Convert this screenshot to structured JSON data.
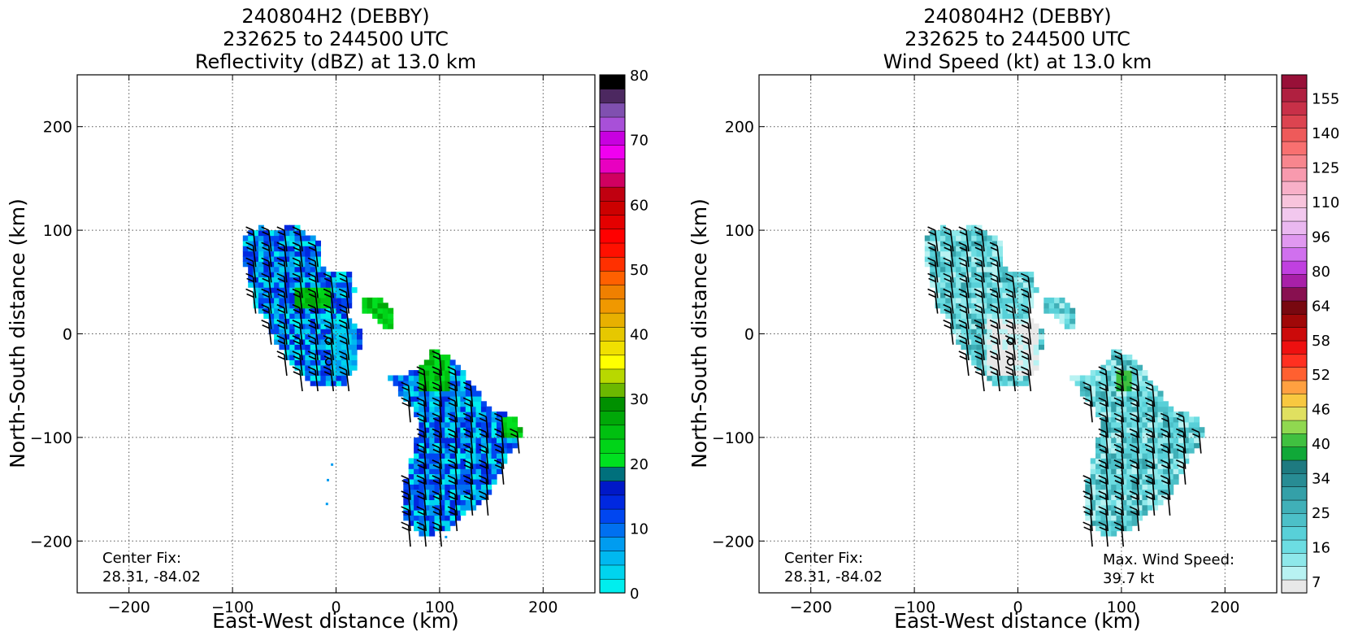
{
  "panels": [
    {
      "title_lines": [
        "240804H2 (DEBBY)",
        "232625 to 244500 UTC",
        "Reflectivity (dBZ) at 13.0 km"
      ],
      "xlabel": "East-West distance (km)",
      "ylabel": "North-South distance (km)",
      "center_fix_label": "Center Fix:",
      "center_fix_value": "28.31, -84.02",
      "colorbar": {
        "tick_labels": [
          "0",
          "10",
          "20",
          "30",
          "40",
          "50",
          "60",
          "70",
          "80"
        ],
        "colors": [
          "#00eeee",
          "#00d4ee",
          "#00b8f0",
          "#009cf0",
          "#0070f0",
          "#0046f0",
          "#0028e0",
          "#0018c8",
          "#00707c",
          "#00e020",
          "#00d418",
          "#00c010",
          "#00a808",
          "#009000",
          "#6cb800",
          "#b8d800",
          "#ffff00",
          "#f0e000",
          "#e6c800",
          "#e8b000",
          "#f09800",
          "#f08000",
          "#ff6000",
          "#ff3000",
          "#ff1000",
          "#ff0000",
          "#e40000",
          "#cc0000",
          "#c00010",
          "#d00060",
          "#e800c0",
          "#f000f0",
          "#c800e0",
          "#a850d8",
          "#8050b0",
          "#4c2860",
          "#000000"
        ]
      },
      "wind_barbs": "black"
    },
    {
      "title_lines": [
        "240804H2 (DEBBY)",
        "232625 to 244500 UTC",
        "Wind Speed (kt) at 13.0 km"
      ],
      "xlabel": "East-West distance (km)",
      "ylabel": "North-South distance (km)",
      "center_fix_label": "Center Fix:",
      "center_fix_value": "28.31, -84.02",
      "max_wind_label": "Max. Wind Speed:",
      "max_wind_value": "39.7 kt",
      "colorbar": {
        "tick_labels": [
          "7",
          "16",
          "25",
          "34",
          "40",
          "46",
          "52",
          "58",
          "64",
          "80",
          "96",
          "110",
          "125",
          "140",
          "155"
        ],
        "colors": [
          "#e8e8e8",
          "#b8f2f2",
          "#8ee8ea",
          "#6cdde2",
          "#58d0d8",
          "#4cc0c8",
          "#40b0b8",
          "#34a0a8",
          "#288c94",
          "#1e7a80",
          "#10a838",
          "#40c040",
          "#90d850",
          "#e0e060",
          "#f8c840",
          "#ffa040",
          "#ff6030",
          "#ff3020",
          "#ee1010",
          "#cc0a0a",
          "#a00808",
          "#780810",
          "#881050",
          "#a820a8",
          "#c040e0",
          "#d070ee",
          "#e098f0",
          "#eab8f0",
          "#f2c8ee",
          "#f8c4dc",
          "#f8b0c8",
          "#f89aae",
          "#f8868e",
          "#f87070",
          "#ee5a5a",
          "#dc4450",
          "#c83048",
          "#b02040",
          "#981038"
        ]
      },
      "wind_barbs": "black"
    }
  ],
  "chart_data": [
    {
      "type": "heatmap",
      "title": "240804H2 (DEBBY) 232625 to 244500 UTC Reflectivity (dBZ) at 13.0 km",
      "xlabel": "East-West distance (km)",
      "ylabel": "North-South distance (km)",
      "xlim": [
        -250,
        250
      ],
      "ylim": [
        -250,
        250
      ],
      "xticks": [
        -200,
        -100,
        0,
        100,
        200
      ],
      "yticks": [
        -200,
        -100,
        0,
        100,
        200
      ],
      "grid": true,
      "colorbar_range": [
        0,
        80
      ],
      "colorbar_units": "dBZ",
      "echo_regions": [
        {
          "x": [
            -90,
            20
          ],
          "y": [
            -55,
            110
          ],
          "dominant_dbz": [
            8,
            14
          ],
          "max_dbz": 28
        },
        {
          "x": [
            25,
            60
          ],
          "y": [
            10,
            35
          ],
          "dominant_dbz": [
            20,
            28
          ]
        },
        {
          "x": [
            45,
            180
          ],
          "y": [
            -200,
            -15
          ],
          "dominant_dbz": [
            6,
            14
          ],
          "max_dbz": 28
        }
      ],
      "center_fix": [
        28.31,
        -84.02
      ]
    },
    {
      "type": "heatmap",
      "title": "240804H2 (DEBBY) 232625 to 244500 UTC Wind Speed (kt) at 13.0 km",
      "xlabel": "East-West distance (km)",
      "ylabel": "North-South distance (km)",
      "xlim": [
        -250,
        250
      ],
      "ylim": [
        -250,
        250
      ],
      "xticks": [
        -200,
        -100,
        0,
        100,
        200
      ],
      "yticks": [
        -200,
        -100,
        0,
        100,
        200
      ],
      "grid": true,
      "colorbar_range": [
        7,
        160
      ],
      "colorbar_units": "kt",
      "wind_regions": [
        {
          "x": [
            -95,
            25
          ],
          "y": [
            -55,
            110
          ],
          "dominant_kt": [
            14,
            28
          ]
        },
        {
          "x": [
            45,
            170
          ],
          "y": [
            -190,
            -15
          ],
          "dominant_kt": [
            14,
            30
          ],
          "max_kt": 39.7
        }
      ],
      "center_fix": [
        28.31,
        -84.02
      ],
      "max_wind_speed_kt": 39.7
    }
  ]
}
